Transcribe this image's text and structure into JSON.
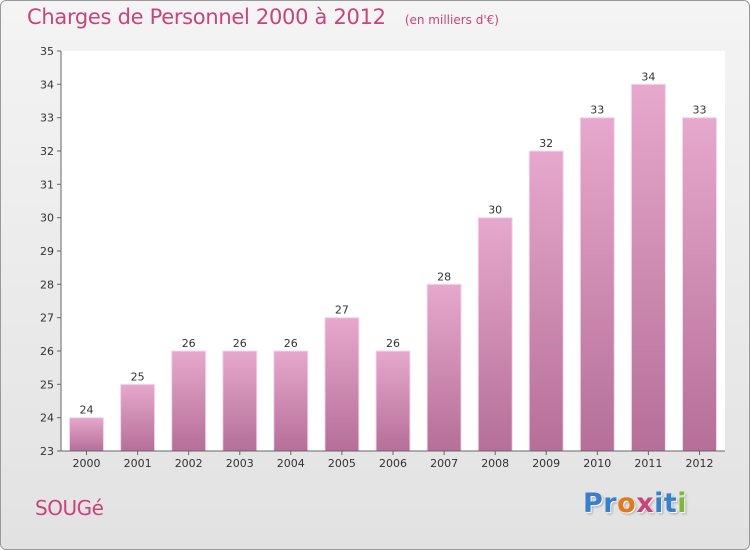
{
  "header": {
    "title": "Charges de Personnel 2000 à 2012",
    "subtitle": "(en milliers d'€)"
  },
  "footer": {
    "place": "SOUGé",
    "logo": "Proxiti"
  },
  "colors": {
    "title": "#c8447a",
    "bar_top": "#e7a8cd",
    "bar_bottom": "#b56f98",
    "logo_letters": [
      "#3a7fc8",
      "#3a7fc8",
      "#e07a1e",
      "#c8447a",
      "#3a7fc8",
      "#3a7fc8",
      "#7db83a"
    ]
  },
  "chart_data": {
    "type": "bar",
    "title": "Charges de Personnel 2000 à 2012",
    "subtitle": "(en milliers d'€)",
    "categories": [
      "2000",
      "2001",
      "2002",
      "2003",
      "2004",
      "2005",
      "2006",
      "2007",
      "2008",
      "2009",
      "2010",
      "2011",
      "2012"
    ],
    "values": [
      24,
      25,
      26,
      26,
      26,
      27,
      26,
      28,
      30,
      32,
      33,
      34,
      33
    ],
    "data_labels": [
      "24",
      "25",
      "26",
      "26",
      "26",
      "27",
      "26",
      "28",
      "30",
      "32",
      "33",
      "34",
      "33"
    ],
    "ylim": [
      23,
      35
    ],
    "yticks": [
      23,
      24,
      25,
      26,
      27,
      28,
      29,
      30,
      31,
      32,
      33,
      34,
      35
    ],
    "grid": false,
    "legend": "none"
  }
}
